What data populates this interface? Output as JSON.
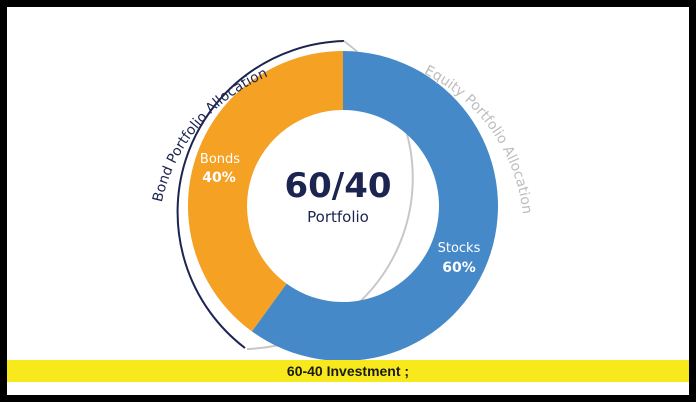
{
  "chart_data": {
    "type": "pie",
    "variant": "donut",
    "center_title": "60/40",
    "center_subtitle": "Portfolio",
    "slices": [
      {
        "name": "Stocks",
        "label": "60%",
        "value": 60,
        "color": "#4589c8"
      },
      {
        "name": "Bonds",
        "label": "40%",
        "value": 40,
        "color": "#f4a124"
      }
    ],
    "arc_labels": {
      "left": "Bond Portfolio Allocation",
      "right": "Equity Portfolio Allocation"
    },
    "colors": {
      "left_arc": "#1c2450",
      "right_arc": "#c8c8c8",
      "center_text": "#1c2450",
      "slice_text": "#ffffff"
    }
  },
  "caption": {
    "text": "60-40 Investment ;",
    "background": "#f7e91b"
  }
}
